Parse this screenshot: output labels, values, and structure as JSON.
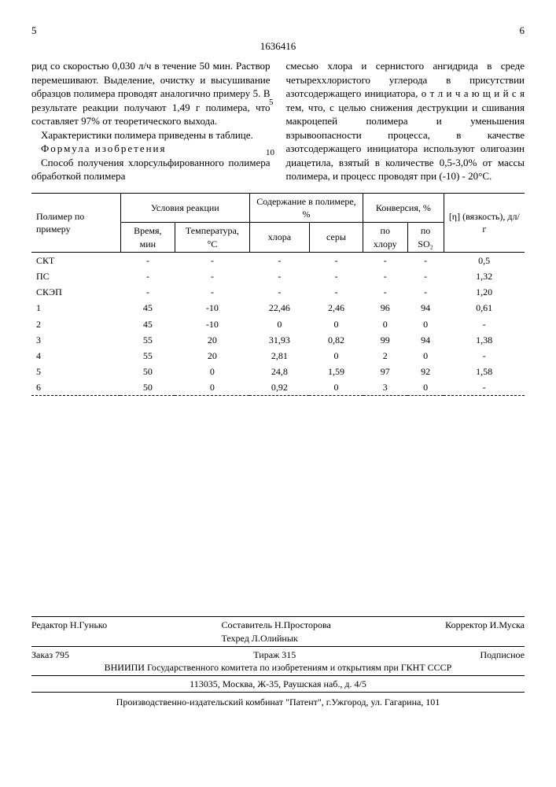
{
  "page_left_num": "5",
  "page_right_num": "6",
  "doc_number": "1636416",
  "line_marker_5": "5",
  "line_marker_10": "10",
  "col_left_p1": "рид со скоростью 0,030 л/ч в течение 50 мин. Раствор перемешивают. Выделение, очистку и высушивание образцов полимера проводят аналогично примеру 5. В результате реакции получают 1,49 г полимера, что составляет 97% от теоретического выхода.",
  "col_left_p2": "Характеристики полимера приведены в таблице.",
  "col_left_p3a": "Формула изобретения",
  "col_left_p3": "Способ получения хлорсульфированного полимера обработкой полимера",
  "col_right_p1": "смесью хлора и сернистого ангидрида в среде четыреххлористого углерода в присутствии азотсодержащего инициатора, о т л и ч а ю щ и й с я  тем, что, с целью снижения деструкции и сшивания макроцепей полимера и уменьшения взрывоопасности процесса, в качестве азотсодержащего инициатора используют олигоазин диацетила, взятый в количестве 0,5-3,0% от массы полимера, и процесс проводят при (-10) - 20°С.",
  "table": {
    "headers": {
      "c1": "Полимер по примеру",
      "c2": "Условия реакции",
      "c3": "Содержание в полимере, %",
      "c4": "Конверсия, %",
      "c5": "[η] (вязкость), дл/г",
      "s1": "Время, мин",
      "s2": "Температура, °С",
      "s3": "хлора",
      "s4": "серы",
      "s5": "по хлору",
      "s6": "по SO₂"
    },
    "rows": [
      [
        "СКТ",
        "-",
        "-",
        "-",
        "-",
        "-",
        "-",
        "0,5"
      ],
      [
        "ПС",
        "-",
        "-",
        "-",
        "-",
        "-",
        "-",
        "1,32"
      ],
      [
        "СКЭП",
        "-",
        "-",
        "-",
        "-",
        "-",
        "-",
        "1,20"
      ],
      [
        "1",
        "45",
        "-10",
        "22,46",
        "2,46",
        "96",
        "94",
        "0,61"
      ],
      [
        "2",
        "45",
        "-10",
        "0",
        "0",
        "0",
        "0",
        "-"
      ],
      [
        "3",
        "55",
        "20",
        "31,93",
        "0,82",
        "99",
        "94",
        "1,38"
      ],
      [
        "4",
        "55",
        "20",
        "2,81",
        "0",
        "2",
        "0",
        "-"
      ],
      [
        "5",
        "50",
        "0",
        "24,8",
        "1,59",
        "97",
        "92",
        "1,58"
      ],
      [
        "6",
        "50",
        "0",
        "0,92",
        "0",
        "3",
        "0",
        "-"
      ]
    ]
  },
  "footer": {
    "editor": "Редактор Н.Гунько",
    "compiler": "Составитель Н.Просторова",
    "techred": "Техред Л.Олийнык",
    "corrector": "Корректор И.Муска",
    "order": "Заказ 795",
    "tirazh": "Тираж 315",
    "podpisnoe": "Подписное",
    "org": "ВНИИПИ Государственного комитета по изобретениям и открытиям при ГКНТ СССР",
    "addr": "113035, Москва, Ж-35, Раушская наб., д. 4/5",
    "publisher": "Производственно-издательский комбинат \"Патент\", г.Ужгород, ул. Гагарина, 101"
  }
}
